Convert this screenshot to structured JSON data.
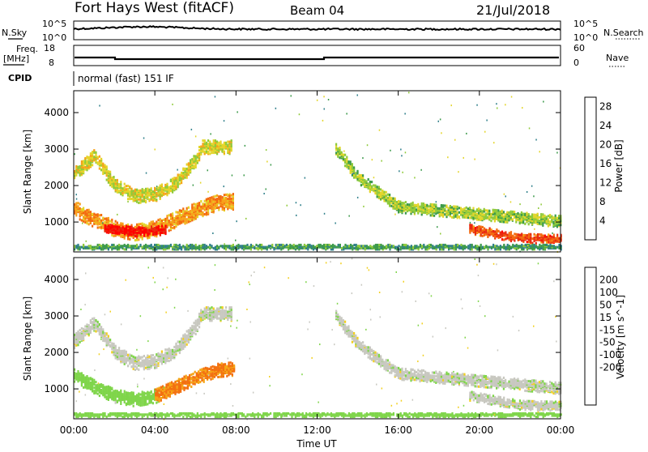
{
  "header": {
    "station": "Fort Hays West (fitACF)",
    "beam": "Beam 04",
    "date": "21/Jul/2018"
  },
  "status_panels": {
    "nsky_label": "N.Sky",
    "nsearch_label": "N.Search",
    "noise_ticks": [
      "10^5",
      "10^0"
    ],
    "freq_label": "Freq.",
    "freq_units": "[MHz]",
    "freq_ticks": [
      "18",
      "8"
    ],
    "nave_label": "Nave",
    "nave_ticks": [
      "60",
      "0"
    ],
    "cpid_label": "CPID",
    "cpid_text": "normal (fast) 151 IF"
  },
  "chart_data": [
    {
      "type": "heatmap",
      "panel": "power",
      "ylabel": "Slant Range [km]",
      "xlabel": "Time UT",
      "x_ticks": [
        "00:00",
        "04:00",
        "08:00",
        "12:00",
        "16:00",
        "20:00",
        "00:00"
      ],
      "y_ticks": [
        1000,
        2000,
        3000,
        4000
      ],
      "ylim": [
        180,
        4600
      ],
      "xlim_hours": [
        0,
        24
      ],
      "colorbar": {
        "label": "Power [dB]",
        "ticks": [
          4,
          8,
          12,
          16,
          20,
          24,
          28
        ],
        "range": [
          0,
          30
        ],
        "colors": [
          "#0018ff",
          "#1e3cc8",
          "#2f7f8a",
          "#3c9a4a",
          "#8fca3a",
          "#e3d52a",
          "#f7a21a",
          "#f36a10",
          "#e82a10",
          "#ff0000"
        ]
      },
      "regions": [
        {
          "t0": 0.0,
          "t1": 7.8,
          "r_center": [
            [
              0,
              2300
            ],
            [
              1,
              2800
            ],
            [
              2,
              2000
            ],
            [
              3,
              1700
            ],
            [
              4,
              1750
            ],
            [
              5,
              2050
            ],
            [
              6,
              2700
            ],
            [
              6.3,
              3050
            ]
          ],
          "width": 380,
          "power": 16
        },
        {
          "t0": 0.0,
          "t1": 7.9,
          "r_center": [
            [
              0,
              1350
            ],
            [
              1,
              1050
            ],
            [
              2,
              800
            ],
            [
              3,
              700
            ],
            [
              4,
              800
            ],
            [
              5,
              1050
            ],
            [
              6,
              1300
            ],
            [
              7,
              1500
            ],
            [
              7.9,
              1550
            ]
          ],
          "width": 420,
          "power": 20
        },
        {
          "t0": 1.5,
          "t1": 4.5,
          "r_center": [
            [
              1.5,
              800
            ],
            [
              3,
              720
            ],
            [
              4.5,
              760
            ]
          ],
          "width": 240,
          "power": 28
        },
        {
          "t0": 12.9,
          "t1": 24,
          "r_center": [
            [
              12.9,
              3000
            ],
            [
              14,
              2200
            ],
            [
              16,
              1400
            ],
            [
              18,
              1300
            ],
            [
              20,
              1200
            ],
            [
              24,
              1000
            ]
          ],
          "width": 300,
          "power": 14
        },
        {
          "t0": 19.5,
          "t1": 24,
          "r_center": [
            [
              19.5,
              800
            ],
            [
              21,
              650
            ],
            [
              22,
              550
            ],
            [
              24,
              520
            ]
          ],
          "width": 260,
          "power": 24
        },
        {
          "t0": 0,
          "t1": 24,
          "r_center": [
            [
              0,
              300
            ],
            [
              24,
              300
            ]
          ],
          "width": 120,
          "power": 10
        }
      ]
    },
    {
      "type": "heatmap",
      "panel": "velocity",
      "ylabel": "Slant Range [km]",
      "xlabel": "Time UT",
      "x_ticks": [
        "00:00",
        "04:00",
        "08:00",
        "12:00",
        "16:00",
        "20:00",
        "00:00"
      ],
      "y_ticks": [
        1000,
        2000,
        3000,
        4000
      ],
      "ylim": [
        180,
        4600
      ],
      "xlim_hours": [
        0,
        24
      ],
      "colorbar": {
        "label": "Velocity [m s^-1]",
        "ticks": [
          "200",
          "100",
          "50",
          "15",
          "-15",
          "-50",
          "-100",
          "-200"
        ],
        "colors": [
          "#1e2ad0",
          "#2b6fc4",
          "#2e8f5f",
          "#3aa63a",
          "#7fd54a",
          "#c8c8c0",
          "#f2d020",
          "#f5a515",
          "#f37010",
          "#ee3010",
          "#ff0000"
        ]
      },
      "regions": [
        {
          "t0": 0.0,
          "t1": 7.8,
          "r_center": [
            [
              0,
              2300
            ],
            [
              1,
              2800
            ],
            [
              2,
              2000
            ],
            [
              3,
              1700
            ],
            [
              4,
              1750
            ],
            [
              5,
              2050
            ],
            [
              6,
              2700
            ],
            [
              6.3,
              3050
            ]
          ],
          "width": 380,
          "vel": 0
        },
        {
          "t0": 0.0,
          "t1": 4.2,
          "r_center": [
            [
              0,
              1350
            ],
            [
              1,
              1050
            ],
            [
              2,
              800
            ],
            [
              3,
              700
            ],
            [
              4,
              800
            ]
          ],
          "width": 380,
          "vel": 30
        },
        {
          "t0": 4.0,
          "t1": 7.9,
          "r_center": [
            [
              4,
              800
            ],
            [
              5,
              1050
            ],
            [
              6,
              1300
            ],
            [
              7,
              1500
            ],
            [
              7.9,
              1550
            ]
          ],
          "width": 380,
          "vel": -80
        },
        {
          "t0": 12.9,
          "t1": 24,
          "r_center": [
            [
              12.9,
              3000
            ],
            [
              14,
              2200
            ],
            [
              16,
              1400
            ],
            [
              18,
              1300
            ],
            [
              20,
              1200
            ],
            [
              24,
              1000
            ]
          ],
          "width": 300,
          "vel": 0
        },
        {
          "t0": 19.5,
          "t1": 24,
          "r_center": [
            [
              19.5,
              800
            ],
            [
              21,
              650
            ],
            [
              22,
              550
            ],
            [
              24,
              520
            ]
          ],
          "width": 260,
          "vel": 0
        },
        {
          "t0": 0,
          "t1": 24,
          "r_center": [
            [
              0,
              280
            ],
            [
              24,
              280
            ]
          ],
          "width": 110,
          "vel": 40
        }
      ]
    }
  ]
}
